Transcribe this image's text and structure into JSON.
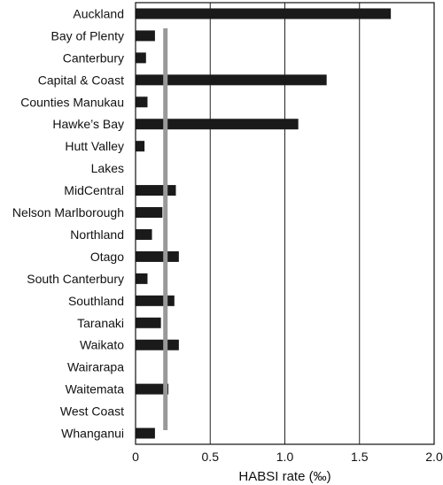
{
  "chart_data": {
    "type": "bar",
    "orientation": "horizontal",
    "categories": [
      "Auckland",
      "Bay of Plenty",
      "Canterbury",
      "Capital & Coast",
      "Counties Manukau",
      "Hawke’s Bay",
      "Hutt Valley",
      "Lakes",
      "MidCentral",
      "Nelson Marlborough",
      "Northland",
      "Otago",
      "South Canterbury",
      "Southland",
      "Taranaki",
      "Waikato",
      "Wairarapa",
      "Waitemata",
      "West Coast",
      "Whanganui"
    ],
    "values": [
      1.71,
      0.13,
      0.07,
      1.28,
      0.08,
      1.09,
      0.06,
      0,
      0.27,
      0.18,
      0.11,
      0.29,
      0.08,
      0.26,
      0.17,
      0.29,
      0,
      0.22,
      0,
      0.13
    ],
    "reference_line": 0.2,
    "xlabel": "HABSI rate (‰)",
    "xlim": [
      0,
      2.0
    ],
    "xticks": [
      "0",
      "0.5",
      "1.0",
      "1.5",
      "2.0"
    ],
    "grid": "vertical",
    "colors": {
      "bars": "#1a1a1a",
      "reference_line": "#999999",
      "grid": "#222222",
      "axes": "#111111"
    }
  }
}
